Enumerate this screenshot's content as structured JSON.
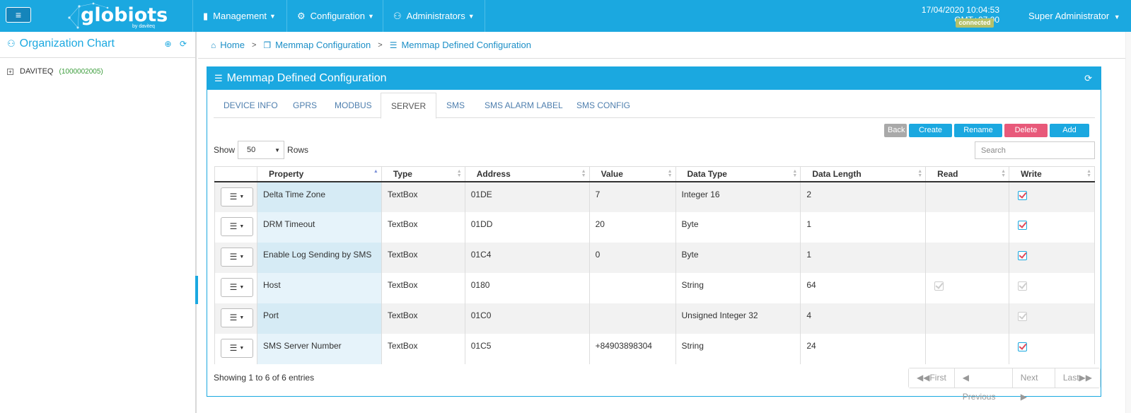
{
  "header": {
    "logo_text": "globiots",
    "logo_sub": "by daviteq",
    "nav": [
      {
        "label": "Management"
      },
      {
        "label": "Configuration"
      },
      {
        "label": "Administrators"
      }
    ],
    "datetime": "17/04/2020 10:04:53 GMT+07:00",
    "status": "connected",
    "user": "Super Administrator"
  },
  "sidebar": {
    "title": "Organization Chart",
    "tree": [
      {
        "name": "DAVITEQ",
        "code": "(1000002005)"
      }
    ]
  },
  "breadcrumb": {
    "home": "Home",
    "level1": "Memmap Configuration",
    "level2": "Memmap Defined Configuration"
  },
  "panel": {
    "title": "Memmap Defined Configuration",
    "tabs": [
      "DEVICE INFO",
      "GPRS",
      "MODBUS",
      "SERVER",
      "SMS",
      "SMS ALARM LABEL",
      "SMS CONFIG"
    ],
    "active_tab": "SERVER",
    "buttons": {
      "back": "Back",
      "create_tab": "Create Tab",
      "rename_tab": "Rename Tab",
      "delete_tab": "Delete Tab",
      "add_field": "Add Field"
    },
    "show_label": "Show",
    "rows_value": "50",
    "rows_label": "Rows",
    "search_placeholder": "Search",
    "columns": [
      "",
      "Property",
      "Type",
      "Address",
      "Value",
      "Data Type",
      "Data Length",
      "Read",
      "Write"
    ],
    "rows": [
      {
        "property": "Delta Time Zone",
        "type": "TextBox",
        "address": "01DE",
        "value": "7",
        "data_type": "Integer 16",
        "data_length": "2",
        "read": "none",
        "write": "checked"
      },
      {
        "property": "DRM Timeout",
        "type": "TextBox",
        "address": "01DD",
        "value": "20",
        "data_type": "Byte",
        "data_length": "1",
        "read": "none",
        "write": "checked"
      },
      {
        "property": "Enable Log Sending by SMS",
        "type": "TextBox",
        "address": "01C4",
        "value": "0",
        "data_type": "Byte",
        "data_length": "1",
        "read": "none",
        "write": "checked"
      },
      {
        "property": "Host",
        "type": "TextBox",
        "address": "0180",
        "value": "",
        "data_type": "String",
        "data_length": "64",
        "read": "disabled",
        "write": "disabled"
      },
      {
        "property": "Port",
        "type": "TextBox",
        "address": "01C0",
        "value": "",
        "data_type": "Unsigned Integer 32",
        "data_length": "4",
        "read": "none",
        "write": "disabled"
      },
      {
        "property": "SMS Server Number",
        "type": "TextBox",
        "address": "01C5",
        "value": "+84903898304",
        "data_type": "String",
        "data_length": "24",
        "read": "none",
        "write": "checked"
      }
    ],
    "info": "Showing 1 to 6 of 6 entries",
    "pager": {
      "first": "First",
      "previous": "Previous",
      "next": "Next",
      "last": "Last"
    }
  },
  "colors": {
    "accent": "#1ba8e0",
    "danger": "#e8597a",
    "muted": "#a9a9a9",
    "badge": "#b5c16b"
  }
}
